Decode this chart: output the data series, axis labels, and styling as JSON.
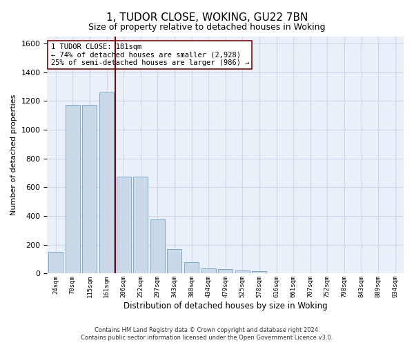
{
  "title": "1, TUDOR CLOSE, WOKING, GU22 7BN",
  "subtitle": "Size of property relative to detached houses in Woking",
  "xlabel": "Distribution of detached houses by size in Woking",
  "ylabel": "Number of detached properties",
  "categories": [
    "24sqm",
    "70sqm",
    "115sqm",
    "161sqm",
    "206sqm",
    "252sqm",
    "297sqm",
    "343sqm",
    "388sqm",
    "434sqm",
    "479sqm",
    "525sqm",
    "570sqm",
    "616sqm",
    "661sqm",
    "707sqm",
    "752sqm",
    "798sqm",
    "843sqm",
    "889sqm",
    "934sqm"
  ],
  "values": [
    150,
    1175,
    1175,
    1260,
    675,
    675,
    375,
    170,
    80,
    35,
    30,
    20,
    15,
    0,
    0,
    0,
    0,
    0,
    0,
    0,
    0
  ],
  "bar_color": "#c9d9e8",
  "bar_edgecolor": "#7aabcf",
  "vline_color": "#8b0000",
  "ylim": [
    0,
    1650
  ],
  "yticks": [
    0,
    200,
    400,
    600,
    800,
    1000,
    1200,
    1400,
    1600
  ],
  "annotation_text": "1 TUDOR CLOSE: 181sqm\n← 74% of detached houses are smaller (2,928)\n25% of semi-detached houses are larger (986) →",
  "annotation_box_color": "#ffffff",
  "annotation_box_edgecolor": "#8b0000",
  "grid_color": "#d0d8e8",
  "background_color": "#eaf0f8",
  "footer_line1": "Contains HM Land Registry data © Crown copyright and database right 2024.",
  "footer_line2": "Contains public sector information licensed under the Open Government Licence v3.0."
}
